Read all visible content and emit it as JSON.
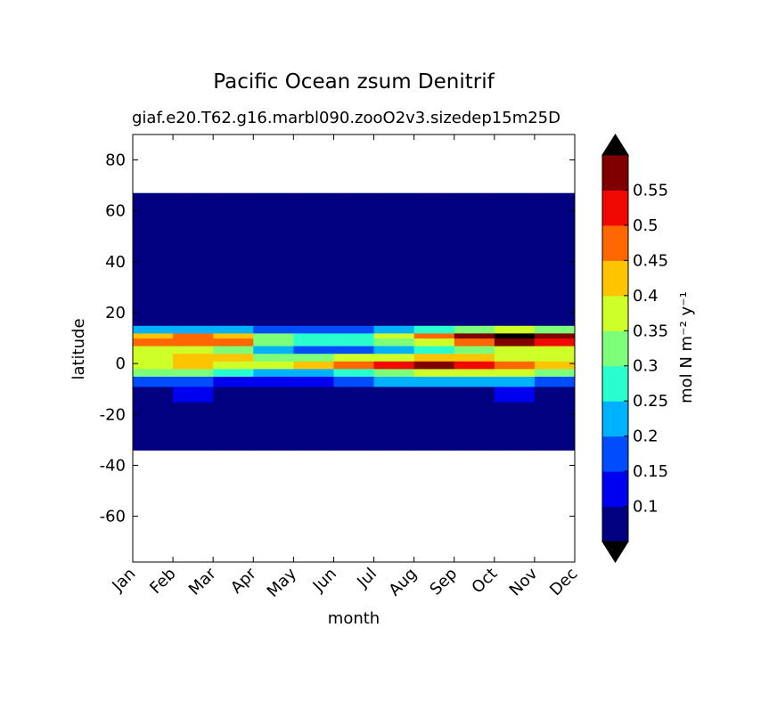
{
  "chart_data": {
    "type": "contour",
    "title": "Pacific Ocean zsum Denitrif",
    "subtitle": "giaf.e20.T62.g16.marbl090.zooO2v3.sizedep15m25D",
    "x_label": "month",
    "y_label": "latitude",
    "categories": [
      "Jan",
      "Feb",
      "Mar",
      "Apr",
      "May",
      "Jun",
      "Jul",
      "Aug",
      "Sep",
      "Oct",
      "Nov",
      "Dec"
    ],
    "ylim": [
      -78,
      90
    ],
    "yticks": [
      -60,
      -40,
      -20,
      0,
      20,
      40,
      60,
      80
    ],
    "lat_edges": [
      -34,
      -15,
      -9,
      -5,
      -2,
      1,
      4,
      7,
      10,
      12,
      15,
      67
    ],
    "z": [
      [
        0.07,
        0.07,
        0.07,
        0.07,
        0.07,
        0.07,
        0.07,
        0.07,
        0.07,
        0.07,
        0.07
      ],
      [
        0.08,
        0.12,
        0.08,
        0.08,
        0.08,
        0.08,
        0.08,
        0.08,
        0.08,
        0.12,
        0.08
      ],
      [
        0.15,
        0.15,
        0.12,
        0.12,
        0.12,
        0.15,
        0.2,
        0.2,
        0.2,
        0.2,
        0.15
      ],
      [
        0.3,
        0.3,
        0.25,
        0.2,
        0.2,
        0.25,
        0.3,
        0.35,
        0.35,
        0.35,
        0.3
      ],
      [
        0.38,
        0.4,
        0.38,
        0.35,
        0.4,
        0.45,
        0.5,
        0.55,
        0.52,
        0.45,
        0.42
      ],
      [
        0.38,
        0.42,
        0.4,
        0.32,
        0.3,
        0.35,
        0.38,
        0.4,
        0.4,
        0.38,
        0.35
      ],
      [
        0.35,
        0.35,
        0.32,
        0.22,
        0.18,
        0.18,
        0.2,
        0.25,
        0.3,
        0.35,
        0.38
      ],
      [
        0.45,
        0.48,
        0.45,
        0.3,
        0.25,
        0.25,
        0.3,
        0.38,
        0.45,
        0.55,
        0.52
      ],
      [
        0.42,
        0.45,
        0.4,
        0.3,
        0.25,
        0.28,
        0.35,
        0.45,
        0.55,
        0.6,
        0.55
      ],
      [
        0.2,
        0.2,
        0.2,
        0.15,
        0.15,
        0.15,
        0.2,
        0.25,
        0.3,
        0.35,
        0.3
      ],
      [
        0.07,
        0.07,
        0.07,
        0.07,
        0.07,
        0.07,
        0.07,
        0.07,
        0.07,
        0.07,
        0.07
      ]
    ],
    "clim": [
      0.05,
      0.6
    ],
    "cticks": [
      0.1,
      0.15,
      0.2,
      0.25,
      0.3,
      0.35,
      0.4,
      0.45,
      0.5,
      0.55
    ],
    "colors": [
      "#000080",
      "#0000f1",
      "#004dff",
      "#00b1ff",
      "#29ffce",
      "#7dff7a",
      "#ceff29",
      "#ffc400",
      "#ff6800",
      "#f10800",
      "#800000"
    ],
    "extend_color": "#000000",
    "colorbar_label": "mol N m⁻² y⁻¹"
  }
}
